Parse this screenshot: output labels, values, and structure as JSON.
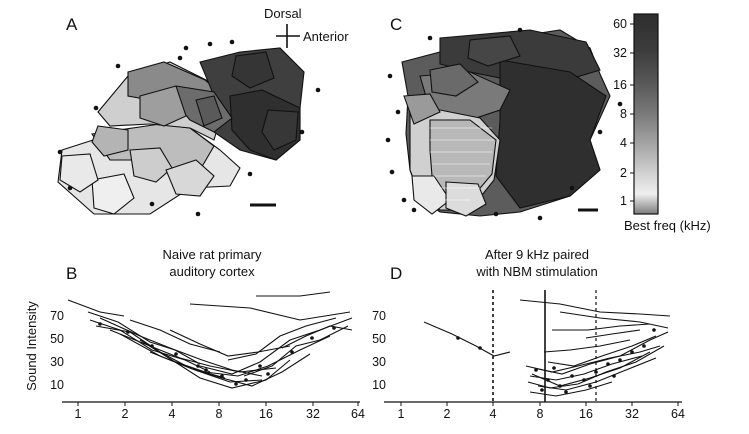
{
  "panels": {
    "a": {
      "label": "A"
    },
    "b": {
      "label": "B",
      "title_line1": "Naive rat primary",
      "title_line2": "auditory cortex"
    },
    "c": {
      "label": "C"
    },
    "d": {
      "label": "D",
      "title_line1": "After 9 kHz paired",
      "title_line2": "with NBM stimulation"
    }
  },
  "orientation": {
    "dorsal": "Dorsal",
    "anterior": "Anterior"
  },
  "colorbar": {
    "title": "Best freq (kHz)",
    "ticks": [
      "60",
      "32",
      "16",
      "8",
      "4",
      "2",
      "1"
    ],
    "scale": "log",
    "gradient": [
      "#2e2e2e",
      "#3c3c3c",
      "#595959",
      "#7a7a7a",
      "#a4a4a4",
      "#d2d2d2",
      "#efefef",
      "#7c7c7c"
    ]
  },
  "plots": {
    "ylabel": "Sound Intensity",
    "y_ticks": [
      "70",
      "50",
      "30",
      "10"
    ],
    "x_ticks": [
      "1",
      "2",
      "4",
      "8",
      "16",
      "32",
      "64"
    ],
    "x_scale": "log2",
    "d_markers": {
      "dotted_khz": [
        4,
        20
      ],
      "solid_khz": 9
    }
  }
}
